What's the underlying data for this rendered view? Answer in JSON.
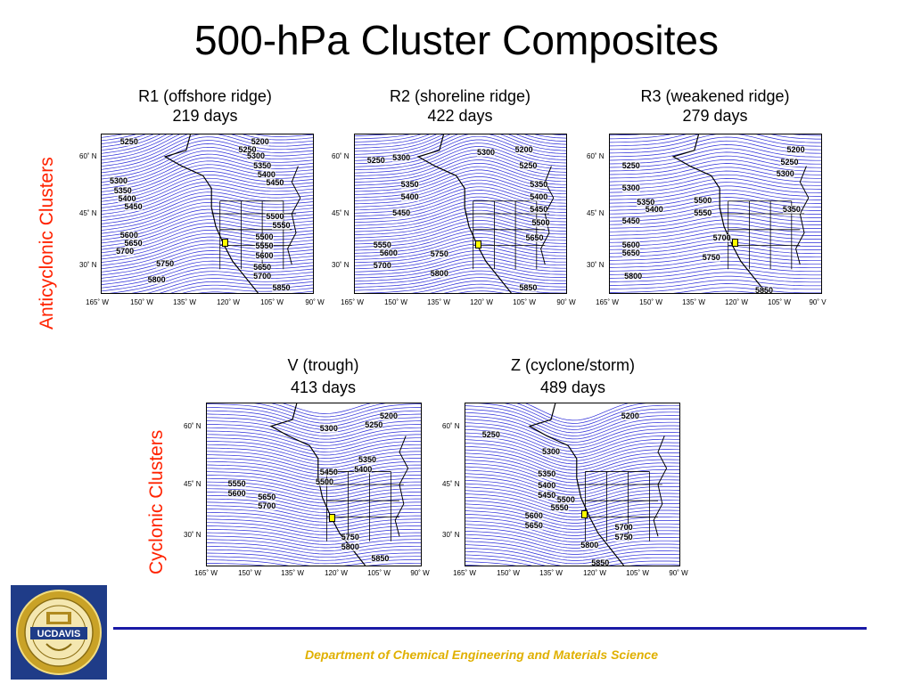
{
  "slide": {
    "title": "500-hPa Cluster Composites",
    "anticyclonic_label": "Anticyclonic Clusters",
    "cyclonic_label": "Cyclonic Clusters",
    "footer": "Department of Chemical Engineering and Materials Science",
    "logo_text": "UCDAVIS",
    "accent_color": "#ff2200",
    "footer_color": "#e0b000",
    "contour_color": "#2a2ad8"
  },
  "axes": {
    "lat_labels": [
      "60˚ N",
      "45˚ N",
      "30˚ N"
    ],
    "lon_labels": [
      "165˚ W",
      "150˚ W",
      "135˚ W",
      "120˚ W",
      "105˚ W",
      "90˚ W"
    ],
    "lon_labels_r3": [
      "165˚ W",
      "150˚ W",
      "135˚ W",
      "120˚ W",
      "105˚ W",
      "90˚ V"
    ]
  },
  "panels": [
    {
      "id": "r1",
      "title": "R1 (offshore ridge)",
      "days": "219 days",
      "contour_labels": [
        "5250",
        "5200",
        "5250",
        "5300",
        "5350",
        "5400",
        "5450",
        "5300",
        "5350",
        "5400",
        "5450",
        "5500",
        "5550",
        "5600",
        "5650",
        "5700",
        "5500",
        "5550",
        "5600",
        "5650",
        "5700",
        "5750",
        "5800",
        "5850"
      ]
    },
    {
      "id": "r2",
      "title": "R2 (shoreline ridge)",
      "days": "422 days",
      "contour_labels": [
        "5250",
        "5300",
        "5350",
        "5400",
        "5450",
        "5300",
        "5200",
        "5250",
        "5350",
        "5400",
        "5450",
        "5500",
        "5550",
        "5600",
        "5650",
        "5700",
        "5750",
        "5800",
        "5850"
      ]
    },
    {
      "id": "r3",
      "title": "R3 (weakened ridge)",
      "days": "279 days",
      "contour_labels": [
        "5200",
        "5250",
        "5300",
        "5250",
        "5300",
        "5350",
        "5400",
        "5450",
        "5500",
        "5550",
        "5600",
        "5650",
        "5700",
        "5750",
        "5800",
        "5850",
        "5350"
      ]
    },
    {
      "id": "v",
      "title": "V (trough)",
      "days": "413 days",
      "contour_labels": [
        "5200",
        "5250",
        "5300",
        "5350",
        "5400",
        "5450",
        "5500",
        "5550",
        "5600",
        "5650",
        "5700",
        "5750",
        "5800",
        "5850"
      ]
    },
    {
      "id": "z",
      "title": "Z (cyclone/storm)",
      "days": "489 days",
      "contour_labels": [
        "5200",
        "5250",
        "5300",
        "5350",
        "5400",
        "5450",
        "5500",
        "5550",
        "5600",
        "5650",
        "5700",
        "5750",
        "5800",
        "5850"
      ]
    }
  ]
}
